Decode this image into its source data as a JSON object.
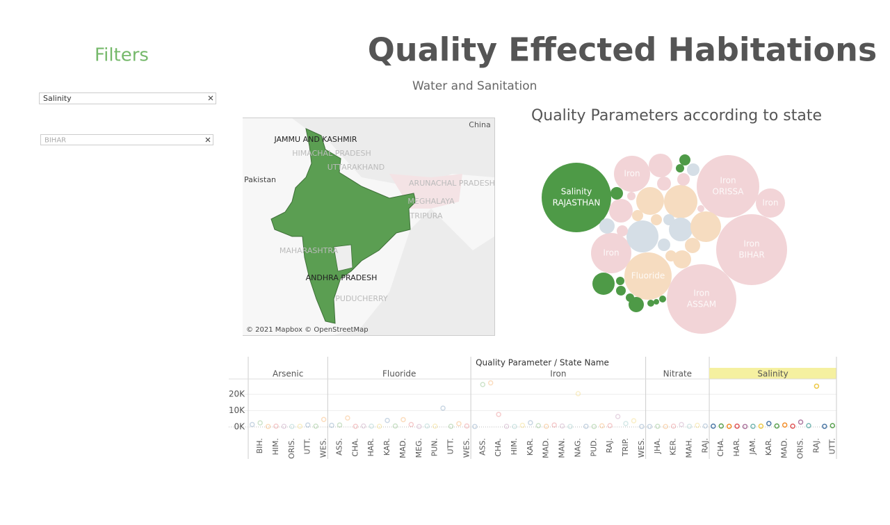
{
  "filters": {
    "title": "Filters",
    "parameter": "Salinity",
    "state": "BIHAR"
  },
  "header": {
    "title": "Quality Effected Habitations",
    "subtitle": "Water and Sanitation"
  },
  "map": {
    "labels": [
      "JAMMU AND KASHMIR",
      "HIMACHAL PRADESH",
      "UTTARAKHAND",
      "China",
      "Pakistan",
      "ARUNACHAL PRADESH",
      "MEGHALAYA",
      "TRIPURA",
      "MAHARASHTRA",
      "ANDHRA PRADESH",
      "PUDUCHERRY"
    ],
    "attribution": "© 2021 Mapbox © OpenStreetMap"
  },
  "bubble_chart": {
    "title": "Quality Parameters according to state",
    "labels": [
      [
        "Salinity",
        "RAJASTHAN"
      ],
      [
        "Iron"
      ],
      [
        "Iron",
        "ORISSA"
      ],
      [
        "Iron"
      ],
      [
        "Iron",
        "BIHAR"
      ],
      [
        "Iron"
      ],
      [
        "Fluoride"
      ],
      [
        "Iron",
        "ASSAM"
      ]
    ]
  },
  "chart_data": {
    "type": "dot",
    "title": "Quality Parameter / State Name",
    "ylim": [
      -3400,
      29400
    ],
    "yticks": [
      {
        "value": 0,
        "label": "0K"
      },
      {
        "value": 10000,
        "label": "10K"
      },
      {
        "value": 20000,
        "label": "20K"
      }
    ],
    "highlight": 4,
    "colors": [
      "#4e79a7",
      "#59a14f",
      "#f28e2b",
      "#e15759",
      "#b07aa1",
      "#76b7b2",
      "#edc948"
    ],
    "panels": [
      {
        "name": "Arsenic",
        "categories": [
          null,
          "BIH.",
          null,
          "HIM.",
          null,
          "ORIS.",
          null,
          "UTT.",
          null,
          "WES."
        ],
        "values": [
          1500,
          2500,
          300,
          500,
          400,
          300,
          400,
          1200,
          500,
          4600
        ]
      },
      {
        "name": "Fluoride",
        "categories": [
          null,
          "ASS.",
          null,
          "CHA.",
          null,
          "HAR.",
          null,
          "KAR.",
          null,
          "MAD.",
          null,
          "MEG.",
          null,
          "PUN.",
          null,
          "UTT.",
          null,
          "WES."
        ],
        "values": [
          1000,
          1200,
          5500,
          400,
          600,
          500,
          400,
          4000,
          600,
          4500,
          1500,
          300,
          600,
          500,
          11500,
          400,
          2000,
          600
        ]
      },
      {
        "name": "Iron",
        "categories": [
          null,
          "ASS.",
          null,
          "CHA.",
          null,
          "HIM.",
          null,
          "KAR.",
          null,
          "MAD.",
          null,
          "MAN.",
          null,
          "NAG.",
          null,
          "PUD.",
          null,
          "RAJ.",
          null,
          "TRIP.",
          null,
          "WES."
        ],
        "values": [
          300,
          26000,
          27000,
          7700,
          400,
          300,
          1000,
          2600,
          800,
          400,
          1200,
          600,
          300,
          20400,
          400,
          300,
          700,
          800,
          6400,
          2100,
          3800,
          300
        ]
      },
      {
        "name": "Nitrate",
        "categories": [
          null,
          "JHA.",
          null,
          "KER.",
          null,
          "MAH.",
          null,
          "RAJ."
        ],
        "values": [
          300,
          400,
          300,
          500,
          1500,
          400,
          1000,
          600
        ]
      },
      {
        "name": "Salinity",
        "categories": [
          null,
          "CHA.",
          null,
          "HAR.",
          null,
          "JAM.",
          null,
          "KAR.",
          null,
          "MAD.",
          null,
          "ORIS.",
          null,
          "RAJ.",
          null,
          "UTT."
        ],
        "values": [
          500,
          600,
          400,
          500,
          300,
          400,
          500,
          2100,
          600,
          1200,
          500,
          3000,
          800,
          25000,
          400,
          800
        ]
      }
    ]
  }
}
